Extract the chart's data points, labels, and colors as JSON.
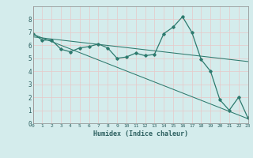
{
  "line1_x": [
    0,
    1,
    2,
    3,
    4,
    5,
    6,
    7,
    8,
    9,
    10,
    11,
    12,
    13,
    14,
    15,
    16,
    17,
    18,
    19,
    20,
    21,
    22,
    23
  ],
  "line1_y": [
    6.9,
    6.4,
    6.4,
    5.7,
    5.5,
    5.8,
    5.9,
    6.1,
    5.8,
    5.0,
    5.1,
    5.4,
    5.2,
    5.3,
    6.9,
    7.4,
    8.2,
    7.0,
    4.9,
    4.0,
    1.8,
    1.0,
    2.0,
    0.4
  ],
  "line2_x": [
    0,
    23
  ],
  "line2_y": [
    6.85,
    0.35
  ],
  "line3_x": [
    0,
    23
  ],
  "line3_y": [
    6.65,
    4.75
  ],
  "line_color": "#2d7a6e",
  "bg_color": "#d4ecec",
  "grid_color": "#c0d8d8",
  "xlabel": "Humidex (Indice chaleur)",
  "ylim": [
    0,
    9
  ],
  "xlim": [
    0,
    23
  ],
  "yticks": [
    0,
    1,
    2,
    3,
    4,
    5,
    6,
    7,
    8
  ],
  "xticks": [
    0,
    1,
    2,
    3,
    4,
    5,
    6,
    7,
    8,
    9,
    10,
    11,
    12,
    13,
    14,
    15,
    16,
    17,
    18,
    19,
    20,
    21,
    22,
    23
  ]
}
